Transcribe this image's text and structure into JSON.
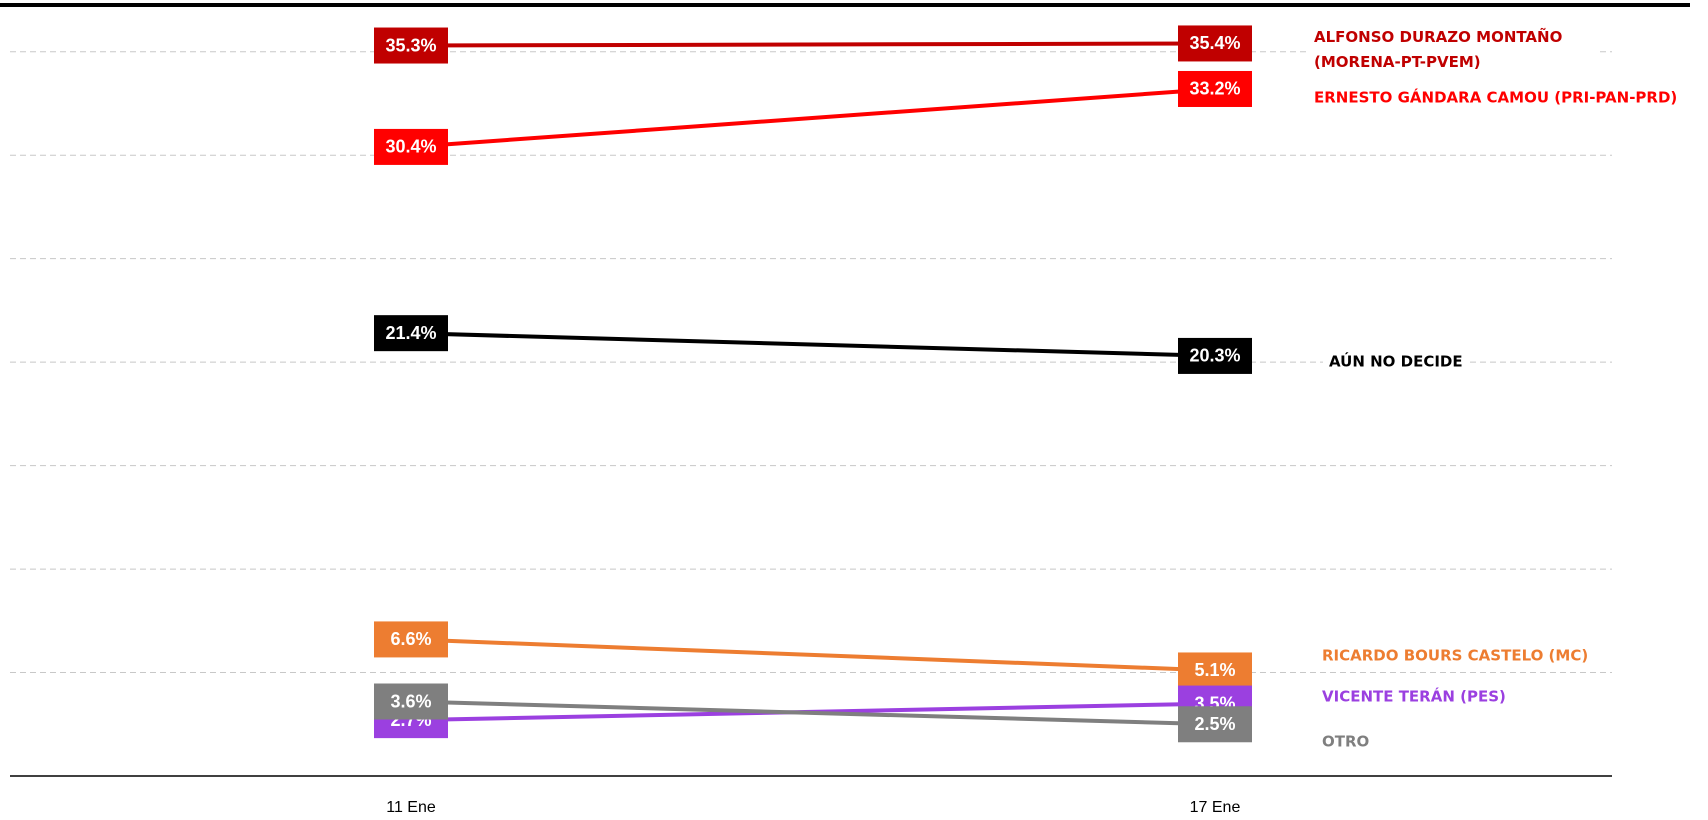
{
  "chart_data": {
    "type": "line",
    "categories": [
      "11 Ene",
      "17 Ene"
    ],
    "series": [
      {
        "name": "ALFONSO DURAZO MONTAÑO (MORENA-PT-PVEM)",
        "color": "#c00000",
        "values": [
          35.3,
          35.4
        ],
        "value_labels": [
          "35.3%",
          "35.4%"
        ]
      },
      {
        "name": "ERNESTO GÁNDARA CAMOU (PRI-PAN-PRD)",
        "color": "#ff0000",
        "values": [
          30.4,
          33.2
        ],
        "value_labels": [
          "30.4%",
          "33.2%"
        ]
      },
      {
        "name": "AÚN NO DECIDE",
        "color": "#000000",
        "values": [
          21.4,
          20.3
        ],
        "value_labels": [
          "21.4%",
          "20.3%"
        ]
      },
      {
        "name": "RICARDO BOURS CASTELO (MC)",
        "color": "#ed7d31",
        "values": [
          6.6,
          5.1
        ],
        "value_labels": [
          "6.6%",
          "5.1%"
        ]
      },
      {
        "name": "VICENTE TERÁN (PES)",
        "color": "#9b40e0",
        "values": [
          2.7,
          3.5
        ],
        "value_labels": [
          "2.7%",
          "3.5%"
        ]
      },
      {
        "name": "OTRO",
        "color": "#7f7f7f",
        "values": [
          3.6,
          2.5
        ],
        "value_labels": [
          "3.6%",
          "2.5%"
        ]
      }
    ],
    "ylim": [
      0,
      37.5
    ],
    "yticks": [
      0,
      5,
      10,
      15,
      20,
      25,
      30,
      35
    ],
    "grid": true
  }
}
